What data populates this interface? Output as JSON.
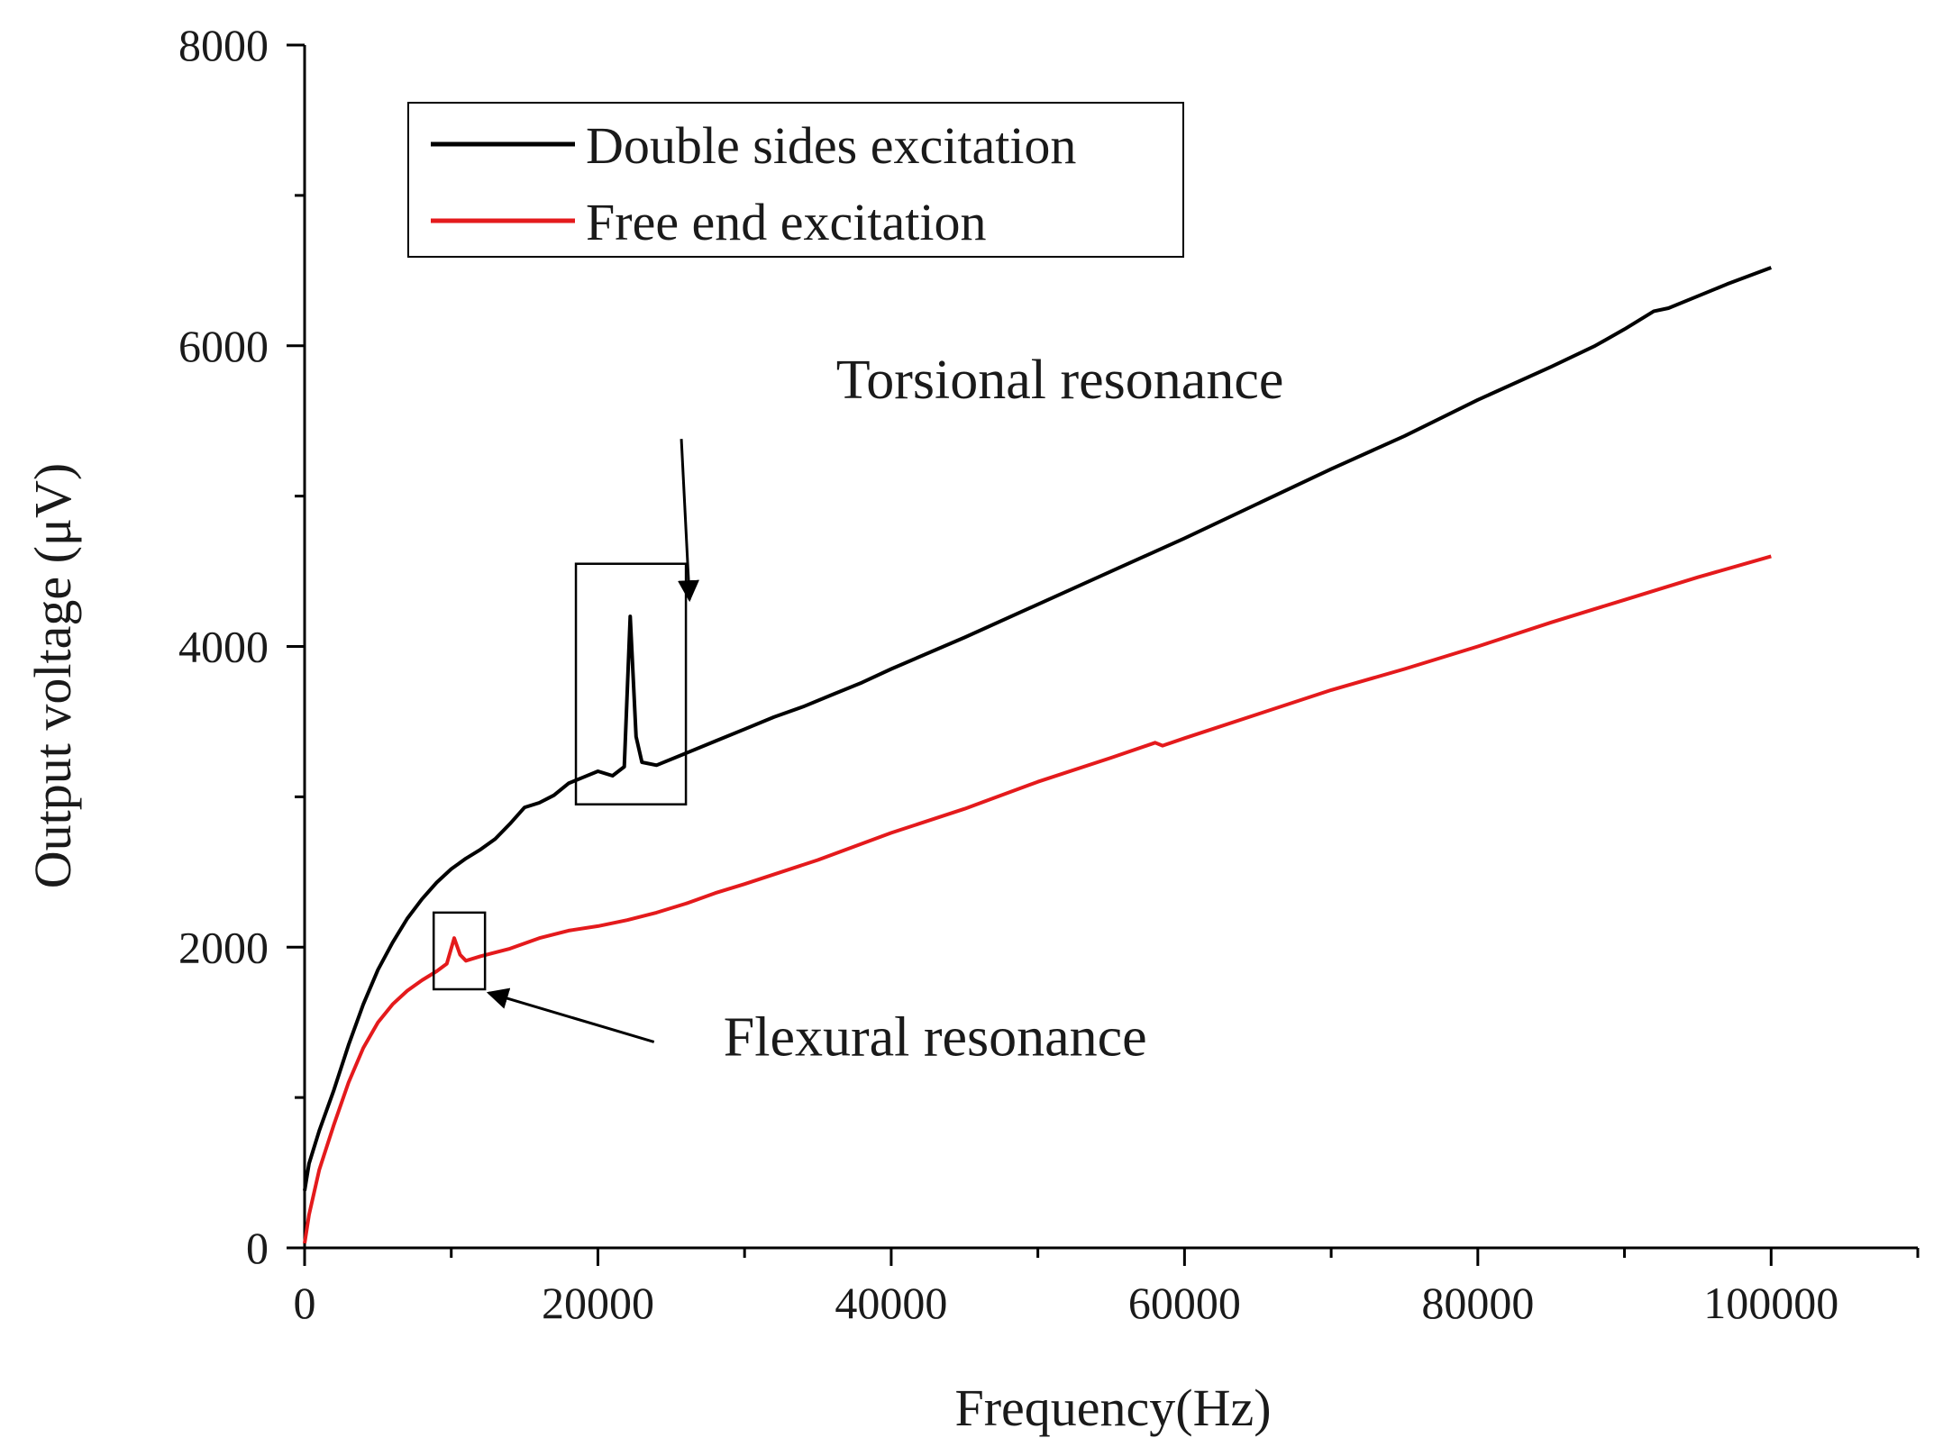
{
  "chart_data": {
    "type": "line",
    "xlabel": "Frequency(Hz)",
    "ylabel": "Output voltage (μV)",
    "xlim": [
      0,
      110000
    ],
    "ylim": [
      0,
      8000
    ],
    "x_major_ticks": [
      0,
      20000,
      40000,
      60000,
      80000,
      100000
    ],
    "x_tick_labels": [
      "0",
      "20000",
      "40000",
      "60000",
      "80000",
      "100000"
    ],
    "x_minor_ticks": [
      10000,
      30000,
      50000,
      70000,
      90000,
      110000
    ],
    "y_major_ticks": [
      0,
      2000,
      4000,
      6000,
      8000
    ],
    "y_tick_labels": [
      "0",
      "2000",
      "4000",
      "6000",
      "8000"
    ],
    "y_minor_ticks": [
      1000,
      3000,
      5000,
      7000
    ],
    "grid": false,
    "legend_position": "top-left",
    "series": [
      {
        "name": "Double sides excitation",
        "color": "#000000",
        "points": [
          [
            0,
            380
          ],
          [
            300,
            560
          ],
          [
            1000,
            780
          ],
          [
            2000,
            1050
          ],
          [
            3000,
            1350
          ],
          [
            4000,
            1620
          ],
          [
            5000,
            1850
          ],
          [
            6000,
            2030
          ],
          [
            7000,
            2190
          ],
          [
            8000,
            2320
          ],
          [
            9000,
            2430
          ],
          [
            10000,
            2520
          ],
          [
            11000,
            2590
          ],
          [
            12000,
            2650
          ],
          [
            13000,
            2720
          ],
          [
            14000,
            2820
          ],
          [
            15000,
            2930
          ],
          [
            16000,
            2960
          ],
          [
            17000,
            3010
          ],
          [
            18000,
            3090
          ],
          [
            19000,
            3130
          ],
          [
            20000,
            3170
          ],
          [
            21000,
            3140
          ],
          [
            21800,
            3200
          ],
          [
            22200,
            4200
          ],
          [
            22600,
            3400
          ],
          [
            23000,
            3230
          ],
          [
            24000,
            3210
          ],
          [
            26000,
            3290
          ],
          [
            28000,
            3370
          ],
          [
            30000,
            3450
          ],
          [
            32000,
            3530
          ],
          [
            34000,
            3600
          ],
          [
            36000,
            3680
          ],
          [
            38000,
            3760
          ],
          [
            40000,
            3850
          ],
          [
            45000,
            4060
          ],
          [
            50000,
            4280
          ],
          [
            55000,
            4500
          ],
          [
            60000,
            4720
          ],
          [
            65000,
            4950
          ],
          [
            70000,
            5180
          ],
          [
            75000,
            5400
          ],
          [
            80000,
            5640
          ],
          [
            85000,
            5860
          ],
          [
            88000,
            6000
          ],
          [
            90000,
            6110
          ],
          [
            92000,
            6230
          ],
          [
            93000,
            6250
          ],
          [
            95000,
            6330
          ],
          [
            97000,
            6410
          ],
          [
            100000,
            6520
          ]
        ]
      },
      {
        "name": "Free end excitation",
        "color": "#e41a1c",
        "points": [
          [
            0,
            30
          ],
          [
            300,
            220
          ],
          [
            1000,
            520
          ],
          [
            2000,
            820
          ],
          [
            3000,
            1100
          ],
          [
            4000,
            1330
          ],
          [
            5000,
            1500
          ],
          [
            6000,
            1620
          ],
          [
            7000,
            1710
          ],
          [
            8000,
            1780
          ],
          [
            9000,
            1840
          ],
          [
            9700,
            1890
          ],
          [
            10200,
            2060
          ],
          [
            10600,
            1950
          ],
          [
            11000,
            1910
          ],
          [
            12000,
            1940
          ],
          [
            14000,
            1990
          ],
          [
            16000,
            2060
          ],
          [
            18000,
            2110
          ],
          [
            20000,
            2140
          ],
          [
            22000,
            2180
          ],
          [
            24000,
            2230
          ],
          [
            26000,
            2290
          ],
          [
            28000,
            2360
          ],
          [
            30000,
            2420
          ],
          [
            35000,
            2580
          ],
          [
            40000,
            2760
          ],
          [
            45000,
            2920
          ],
          [
            50000,
            3100
          ],
          [
            55000,
            3260
          ],
          [
            58000,
            3360
          ],
          [
            58500,
            3340
          ],
          [
            60000,
            3390
          ],
          [
            65000,
            3550
          ],
          [
            70000,
            3710
          ],
          [
            75000,
            3850
          ],
          [
            80000,
            4000
          ],
          [
            85000,
            4160
          ],
          [
            90000,
            4310
          ],
          [
            95000,
            4460
          ],
          [
            100000,
            4600
          ]
        ]
      }
    ],
    "annotations": [
      {
        "text": "Torsional resonance",
        "box_x": [
          18500,
          26000
        ],
        "box_y": [
          2950,
          4550
        ],
        "label_x": 51500,
        "label_y": 5650
      },
      {
        "text": "Flexural resonance",
        "box_x": [
          8800,
          12300
        ],
        "box_y": [
          1720,
          2230
        ],
        "label_x": 43000,
        "label_y": 1280
      }
    ]
  }
}
